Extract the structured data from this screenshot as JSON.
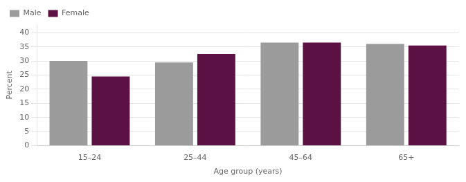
{
  "chart_data": {
    "type": "bar",
    "xlabel": "Age group (years)",
    "ylabel": "Percent",
    "categories": [
      "15–24",
      "25–44",
      "45–64",
      "65+"
    ],
    "series": [
      {
        "name": "Male",
        "color": "#9b9b9b",
        "values": [
          30.0,
          29.5,
          36.5,
          36.0
        ]
      },
      {
        "name": "Female",
        "color": "#5c1145",
        "values": [
          24.5,
          32.5,
          36.5,
          35.5
        ]
      }
    ],
    "ylim": [
      0,
      43
    ],
    "yticks": [
      0,
      5,
      10,
      15,
      20,
      25,
      30,
      35,
      40
    ],
    "grid": true,
    "legend": "top left"
  }
}
